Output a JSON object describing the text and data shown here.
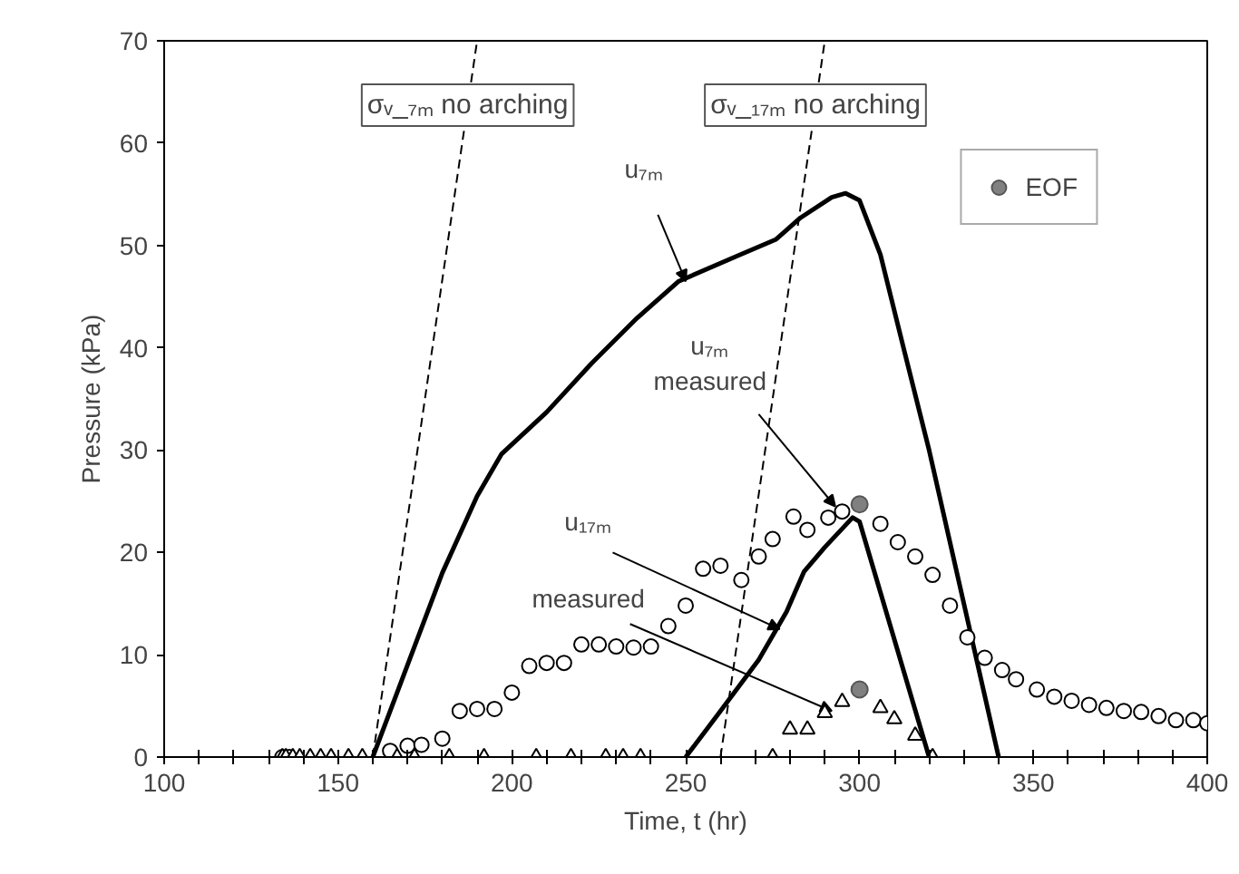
{
  "chart_data": {
    "type": "line",
    "xlabel": "Time, t (hr)",
    "ylabel": "Pressure (kPa)",
    "xlim": [
      100,
      400
    ],
    "ylim": [
      0,
      70
    ],
    "xticks": [
      100,
      {
        "value": 110,
        "label": null
      },
      {
        "value": 120,
        "label": null
      },
      {
        "value": 130,
        "label": null
      },
      {
        "value": 140,
        "label": null
      },
      150,
      {
        "value": 160,
        "label": null
      },
      {
        "value": 170,
        "label": null
      },
      {
        "value": 180,
        "label": null
      },
      {
        "value": 190,
        "label": null
      },
      200,
      {
        "value": 210,
        "label": null
      },
      {
        "value": 220,
        "label": null
      },
      {
        "value": 230,
        "label": null
      },
      {
        "value": 240,
        "label": null
      },
      250,
      {
        "value": 260,
        "label": null
      },
      {
        "value": 270,
        "label": null
      },
      {
        "value": 280,
        "label": null
      },
      {
        "value": 290,
        "label": null
      },
      300,
      {
        "value": 310,
        "label": null
      },
      {
        "value": 320,
        "label": null
      },
      {
        "value": 330,
        "label": null
      },
      {
        "value": 340,
        "label": null
      },
      350,
      {
        "value": 360,
        "label": null
      },
      {
        "value": 370,
        "label": null
      },
      {
        "value": 380,
        "label": null
      },
      {
        "value": 390,
        "label": null
      },
      400
    ],
    "yticks": [
      0,
      10,
      20,
      30,
      40,
      50,
      60,
      70
    ],
    "legend": "top right",
    "grid": false,
    "series": [
      {
        "color": "#000000",
        "line_style": "solid",
        "x": [
          160,
          170,
          180,
          190,
          197,
          210,
          223,
          236,
          248,
          265,
          276,
          283,
          292,
          296,
          300,
          306,
          313,
          320,
          330,
          340
        ],
        "values": [
          0,
          9,
          18,
          25.5,
          29.6,
          33.7,
          38.5,
          42.9,
          46.5,
          49,
          50.6,
          52.7,
          54.7,
          55.1,
          54.4,
          49.1,
          39.5,
          30,
          15,
          0
        ]
      },
      {
        "color": "#000000",
        "line_style": "solid",
        "x": [
          250,
          260,
          271,
          279,
          284,
          290,
          298,
          300,
          320
        ],
        "values": [
          0,
          4.5,
          9.5,
          14.2,
          18.1,
          20.5,
          23.4,
          23,
          0
        ]
      },
      {
        "name": "σᵥ_₇ₘ no arching",
        "color": "#000000",
        "line_style": "dashed",
        "x": [
          160,
          190
        ],
        "values": [
          0,
          70
        ]
      },
      {
        "name": "σᵥ_₁₇ₘ no arching",
        "color": "#000000",
        "line_style": "dashed",
        "x": [
          260,
          290
        ],
        "values": [
          0,
          70
        ]
      },
      {
        "type": "scatter",
        "marker": "circle",
        "color": "#000000",
        "x": [
          134,
          136,
          165,
          170,
          174,
          180,
          185,
          190,
          195,
          200,
          205,
          210,
          215,
          220,
          225,
          230,
          235,
          240,
          245,
          250,
          255,
          260,
          266,
          271,
          275,
          281,
          285,
          291,
          295,
          306,
          311,
          316,
          321,
          326,
          331,
          336,
          341,
          345,
          351,
          356,
          361,
          366,
          371,
          376,
          381,
          386,
          391,
          396,
          400
        ],
        "values": [
          0,
          0,
          0.6,
          1.1,
          1.2,
          1.8,
          4.5,
          4.7,
          4.7,
          6.3,
          8.9,
          9.2,
          9.2,
          11,
          11,
          10.8,
          10.7,
          10.8,
          12.8,
          14.8,
          18.4,
          18.7,
          17.3,
          19.6,
          21.3,
          23.5,
          22.2,
          23.4,
          24,
          22.8,
          21,
          19.6,
          17.8,
          14.8,
          11.7,
          9.7,
          8.5,
          7.6,
          6.6,
          5.9,
          5.5,
          5.1,
          4.8,
          4.5,
          4.4,
          4,
          3.6,
          3.6,
          3.3
        ]
      },
      {
        "type": "scatter",
        "marker": "triangle",
        "color": "#000000",
        "x": [
          134,
          135,
          137,
          139,
          142,
          145,
          148,
          153,
          157,
          167,
          172,
          182,
          192,
          207,
          217,
          227,
          232,
          237,
          275,
          280,
          285,
          290,
          295,
          306,
          310,
          316,
          321
        ],
        "values": [
          0,
          0,
          0,
          0,
          0,
          0,
          0,
          0,
          0,
          0,
          0,
          0,
          0,
          0,
          0,
          0,
          0,
          0,
          0,
          2.7,
          2.7,
          4.3,
          5.4,
          4.8,
          3.7,
          2.1,
          0
        ]
      },
      {
        "type": "scatter",
        "marker": "circle",
        "name": "EOF",
        "color": "#808080",
        "x": [
          300,
          300
        ],
        "values": [
          24.7,
          6.6
        ]
      }
    ],
    "annotations": [
      {
        "text": "u₇ₘ",
        "x": 250,
        "y": 46.5
      },
      {
        "text": "u₇ₘ\nmeasured",
        "x": 293,
        "y": 24.5
      },
      {
        "text": "u₁₇ₘ",
        "x": 277,
        "y": 12.5
      },
      {
        "text": "measured",
        "x": 292,
        "y": 4.5
      }
    ]
  }
}
